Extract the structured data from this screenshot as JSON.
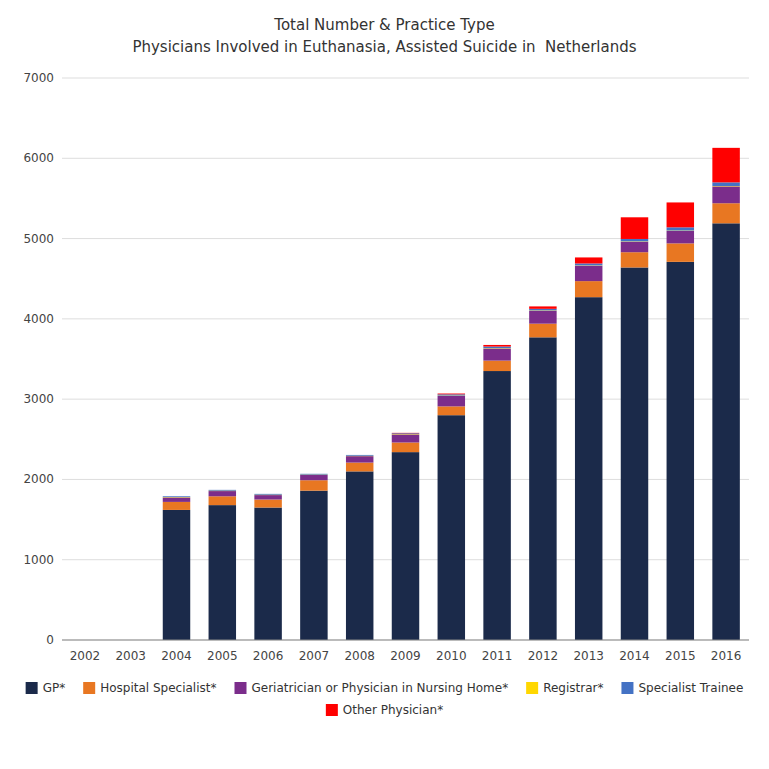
{
  "chart_data": {
    "type": "bar",
    "stacked": true,
    "title": "Total Number & Practice Type",
    "subtitle": "Physicians Involved in Euthanasia, Assisted Suicide in  Netherlands",
    "categories": [
      "2002",
      "2003",
      "2004",
      "2005",
      "2006",
      "2007",
      "2008",
      "2009",
      "2010",
      "2011",
      "2012",
      "2013",
      "2014",
      "2015",
      "2016"
    ],
    "series": [
      {
        "name": "GP*",
        "color": "#1B2A4A",
        "values": [
          0,
          0,
          1620,
          1680,
          1650,
          1860,
          2100,
          2340,
          2800,
          3350,
          3770,
          4270,
          4640,
          4710,
          5190
        ]
      },
      {
        "name": "Hospital Specialist*",
        "color": "#E87722",
        "values": [
          0,
          0,
          100,
          110,
          100,
          130,
          110,
          120,
          110,
          130,
          170,
          200,
          190,
          230,
          250
        ]
      },
      {
        "name": "Geriatrician or Physician in Nursing Home*",
        "color": "#7B2D8B",
        "values": [
          0,
          0,
          55,
          65,
          55,
          65,
          80,
          100,
          130,
          150,
          160,
          190,
          130,
          155,
          210
        ]
      },
      {
        "name": "Registrar*",
        "color": "#FFD700",
        "values": [
          0,
          0,
          5,
          5,
          5,
          5,
          5,
          5,
          5,
          5,
          5,
          5,
          5,
          5,
          5
        ]
      },
      {
        "name": "Specialist Trainee",
        "color": "#4472C4",
        "values": [
          0,
          0,
          10,
          10,
          10,
          10,
          10,
          10,
          15,
          20,
          20,
          25,
          30,
          40,
          45
        ]
      },
      {
        "name": "Other Physician*",
        "color": "#FF0000",
        "values": [
          0,
          0,
          0,
          0,
          0,
          0,
          0,
          5,
          10,
          20,
          30,
          75,
          270,
          310,
          430
        ]
      }
    ],
    "ylim": [
      0,
      7000
    ],
    "yticks": [
      0,
      1000,
      2000,
      3000,
      4000,
      5000,
      6000,
      7000
    ],
    "grid": true,
    "legend": "bottom"
  }
}
